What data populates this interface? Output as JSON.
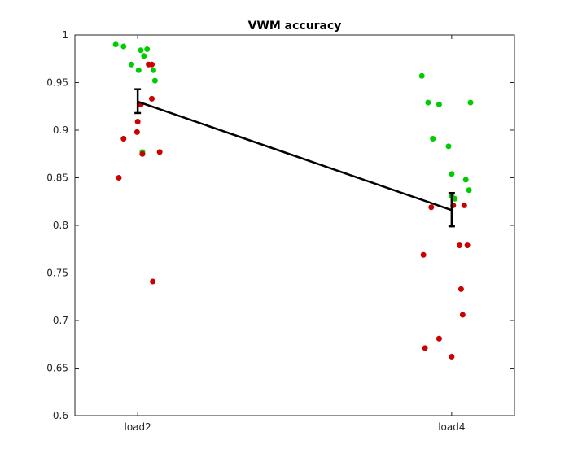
{
  "chart_data": {
    "type": "scatter",
    "title": "VWM accuracy",
    "xlabel": "",
    "ylabel": "",
    "categories": [
      "load2",
      "load4"
    ],
    "ylim": [
      0.6,
      1.0
    ],
    "yticks": [
      "0.6",
      "0.65",
      "0.7",
      "0.75",
      "0.8",
      "0.85",
      "0.9",
      "0.95",
      "1"
    ],
    "grid": false,
    "colors": {
      "green": "#00cc00",
      "red": "#cc0000",
      "mean_line": "#000000",
      "axes": "#262626"
    },
    "series": [
      {
        "color": "green",
        "points": [
          {
            "x": 0.93,
            "y": 0.99
          },
          {
            "x": 0.955,
            "y": 0.988
          },
          {
            "x": 0.98,
            "y": 0.969
          },
          {
            "x": 1.003,
            "y": 0.963
          },
          {
            "x": 1.01,
            "y": 0.984
          },
          {
            "x": 1.02,
            "y": 0.978
          },
          {
            "x": 1.03,
            "y": 0.985
          },
          {
            "x": 1.05,
            "y": 0.963
          },
          {
            "x": 1.055,
            "y": 0.952
          },
          {
            "x": 1.015,
            "y": 0.877
          },
          {
            "x": 1.905,
            "y": 0.957
          },
          {
            "x": 1.925,
            "y": 0.929
          },
          {
            "x": 1.94,
            "y": 0.891
          },
          {
            "x": 1.96,
            "y": 0.927
          },
          {
            "x": 1.99,
            "y": 0.883
          },
          {
            "x": 2.0,
            "y": 0.854
          },
          {
            "x": 2.0,
            "y": 0.831
          },
          {
            "x": 2.01,
            "y": 0.828
          },
          {
            "x": 2.045,
            "y": 0.848
          },
          {
            "x": 2.055,
            "y": 0.837
          },
          {
            "x": 2.06,
            "y": 0.929
          }
        ]
      },
      {
        "color": "red",
        "points": [
          {
            "x": 0.94,
            "y": 0.85
          },
          {
            "x": 0.955,
            "y": 0.891
          },
          {
            "x": 0.998,
            "y": 0.898
          },
          {
            "x": 1.0,
            "y": 0.909
          },
          {
            "x": 1.01,
            "y": 0.927
          },
          {
            "x": 1.015,
            "y": 0.875
          },
          {
            "x": 1.035,
            "y": 0.969
          },
          {
            "x": 1.045,
            "y": 0.969
          },
          {
            "x": 1.045,
            "y": 0.933
          },
          {
            "x": 1.048,
            "y": 0.741
          },
          {
            "x": 1.07,
            "y": 0.877
          },
          {
            "x": 1.915,
            "y": 0.671
          },
          {
            "x": 1.91,
            "y": 0.769
          },
          {
            "x": 1.96,
            "y": 0.681
          },
          {
            "x": 2.0,
            "y": 0.662
          },
          {
            "x": 2.005,
            "y": 0.821
          },
          {
            "x": 2.025,
            "y": 0.779
          },
          {
            "x": 2.03,
            "y": 0.733
          },
          {
            "x": 2.035,
            "y": 0.706
          },
          {
            "x": 2.04,
            "y": 0.821
          },
          {
            "x": 2.05,
            "y": 0.779
          },
          {
            "x": 1.935,
            "y": 0.819
          }
        ]
      }
    ],
    "means": [
      {
        "x": 1,
        "y": 0.93,
        "err_low": 0.918,
        "err_high": 0.943
      },
      {
        "x": 2,
        "y": 0.816,
        "err_low": 0.799,
        "err_high": 0.834
      }
    ]
  }
}
